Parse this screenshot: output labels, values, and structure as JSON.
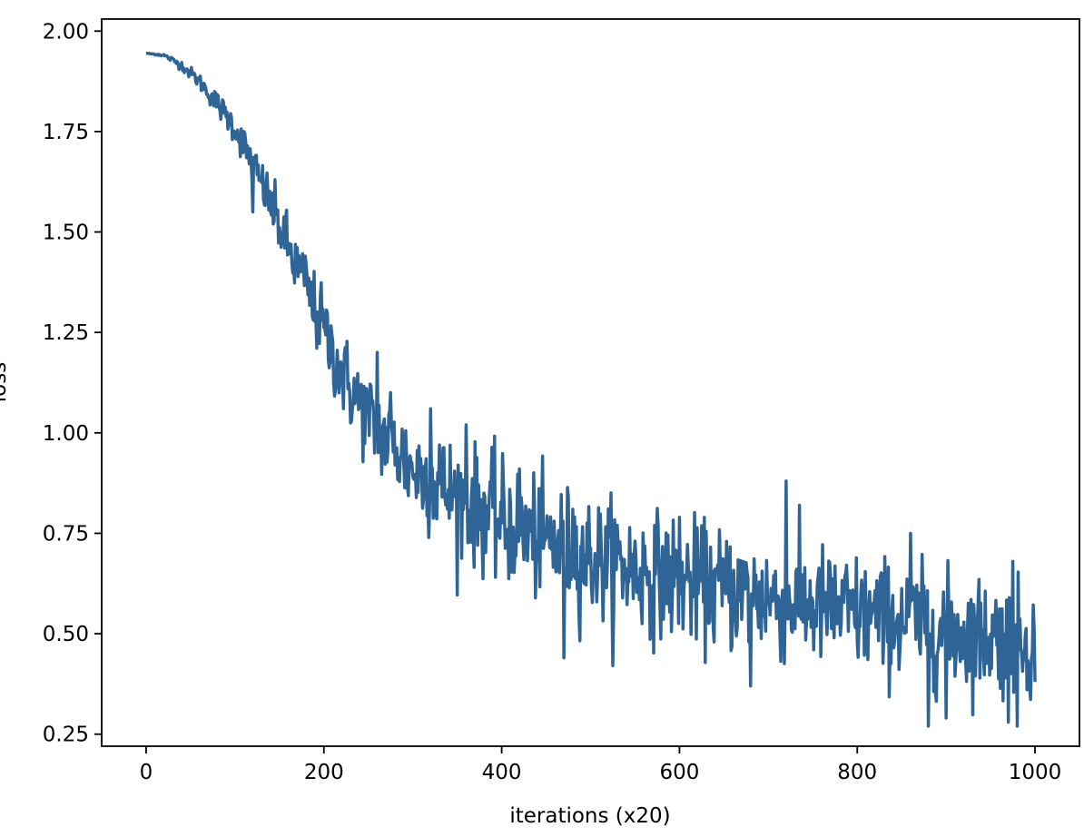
{
  "chart_data": {
    "type": "line",
    "title": "",
    "xlabel": "iterations (x20)",
    "ylabel": "loss",
    "xlim": [
      -50,
      1050
    ],
    "ylim": [
      0.22,
      2.03
    ],
    "x_ticks": [
      0,
      200,
      400,
      600,
      800,
      1000
    ],
    "x_tick_labels": [
      "0",
      "200",
      "400",
      "600",
      "800",
      "1000"
    ],
    "y_ticks": [
      0.25,
      0.5,
      0.75,
      1.0,
      1.25,
      1.5,
      1.75,
      2.0
    ],
    "y_tick_labels": [
      "0.25",
      "0.50",
      "0.75",
      "1.00",
      "1.25",
      "1.50",
      "1.75",
      "2.00"
    ],
    "grid": false,
    "legend": "none",
    "series": [
      {
        "color": "#2f6497",
        "line_width": 3.5,
        "x_range": [
          0,
          1000
        ],
        "n_points": 1001,
        "trend": {
          "x": [
            0,
            20,
            40,
            60,
            80,
            100,
            120,
            140,
            160,
            180,
            200,
            220,
            240,
            260,
            280,
            300,
            350,
            400,
            450,
            500,
            550,
            600,
            650,
            700,
            750,
            800,
            850,
            900,
            950,
            1000
          ],
          "y": [
            1.945,
            1.94,
            1.915,
            1.875,
            1.82,
            1.76,
            1.67,
            1.57,
            1.46,
            1.36,
            1.25,
            1.15,
            1.07,
            1.01,
            0.96,
            0.91,
            0.84,
            0.78,
            0.73,
            0.69,
            0.66,
            0.635,
            0.61,
            0.59,
            0.57,
            0.55,
            0.53,
            0.51,
            0.495,
            0.48
          ]
        },
        "noise_amplitude": {
          "x": [
            0,
            20,
            60,
            100,
            160,
            200,
            300,
            400,
            500,
            700,
            1000
          ],
          "y": [
            0.0,
            0.002,
            0.01,
            0.02,
            0.04,
            0.05,
            0.065,
            0.075,
            0.075,
            0.075,
            0.07
          ]
        },
        "spikes": [
          {
            "x": 120,
            "y": 1.55
          },
          {
            "x": 180,
            "y": 1.42
          },
          {
            "x": 196,
            "y": 1.34
          },
          {
            "x": 260,
            "y": 1.2
          },
          {
            "x": 275,
            "y": 1.1
          },
          {
            "x": 280,
            "y": 0.92
          },
          {
            "x": 320,
            "y": 1.06
          },
          {
            "x": 330,
            "y": 0.97
          },
          {
            "x": 360,
            "y": 1.02
          },
          {
            "x": 420,
            "y": 0.91
          },
          {
            "x": 470,
            "y": 0.44
          },
          {
            "x": 480,
            "y": 0.81
          },
          {
            "x": 530,
            "y": 0.77
          },
          {
            "x": 600,
            "y": 0.79
          },
          {
            "x": 680,
            "y": 0.37
          },
          {
            "x": 720,
            "y": 0.88
          },
          {
            "x": 860,
            "y": 0.75
          },
          {
            "x": 880,
            "y": 0.27
          },
          {
            "x": 900,
            "y": 0.29
          },
          {
            "x": 970,
            "y": 0.28
          },
          {
            "x": 980,
            "y": 0.27
          },
          {
            "x": 975,
            "y": 0.68
          }
        ],
        "last_value": 0.38
      }
    ]
  }
}
